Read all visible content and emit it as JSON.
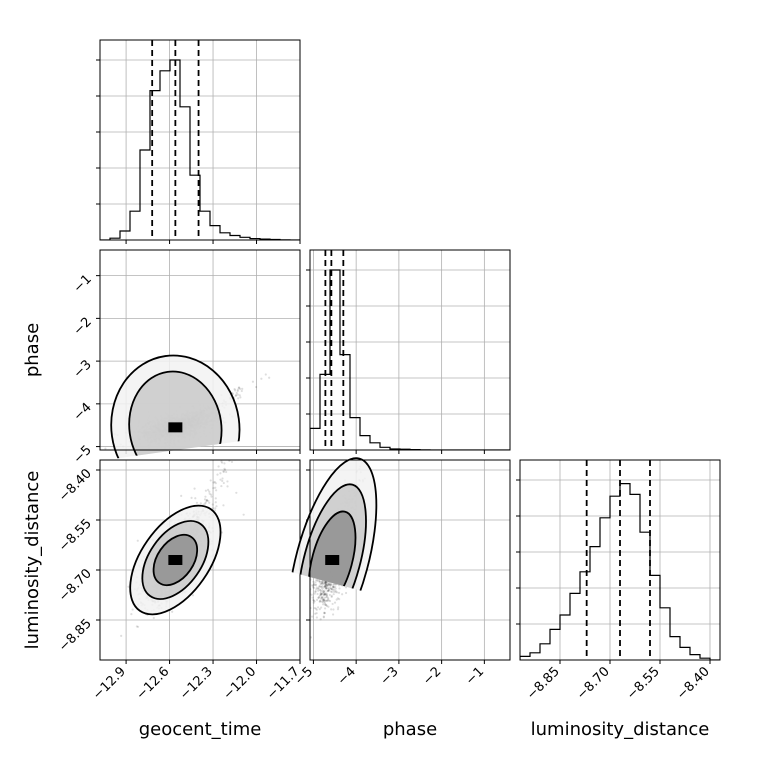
{
  "chart_data": {
    "type": "corner",
    "parameters": [
      "geocent_time",
      "phase",
      "luminosity_distance"
    ],
    "axis_labels": {
      "geocent_time": "geocent_time",
      "phase": "phase",
      "luminosity_distance": "luminosity_distance"
    },
    "grid": true,
    "ranges": {
      "geocent_time": [
        -13.08,
        -11.7
      ],
      "phase": [
        -5.08,
        -0.4
      ],
      "luminosity_distance": [
        -8.97,
        -8.37
      ]
    },
    "ticks": {
      "geocent_time": [
        {
          "v": -12.9,
          "label": "−12.9"
        },
        {
          "v": -12.6,
          "label": "−12.6"
        },
        {
          "v": -12.3,
          "label": "−12.3"
        },
        {
          "v": -12.0,
          "label": "−12.0"
        },
        {
          "v": -11.7,
          "label": "−11.7"
        }
      ],
      "phase": [
        {
          "v": -5,
          "label": "−5"
        },
        {
          "v": -4,
          "label": "−4"
        },
        {
          "v": -3,
          "label": "−3"
        },
        {
          "v": -2,
          "label": "−2"
        },
        {
          "v": -1,
          "label": "−1"
        }
      ],
      "luminosity_distance": [
        {
          "v": -8.85,
          "label": "−8.85"
        },
        {
          "v": -8.7,
          "label": "−8.70"
        },
        {
          "v": -8.55,
          "label": "−8.55"
        },
        {
          "v": -8.4,
          "label": "−8.40"
        }
      ]
    },
    "histograms": {
      "geocent_time": {
        "bin_start": -13.08,
        "bin_width": 0.069,
        "values": [
          0.0,
          0.01,
          0.05,
          0.16,
          0.5,
          0.83,
          0.94,
          1.0,
          0.74,
          0.36,
          0.16,
          0.08,
          0.04,
          0.025,
          0.015,
          0.008,
          0.005,
          0.003,
          0.001,
          0.0
        ],
        "quantiles": [
          -12.72,
          -12.56,
          -12.4
        ]
      },
      "phase": {
        "bin_start": -5.08,
        "bin_width": 0.234,
        "values": [
          0.12,
          0.42,
          1.0,
          0.53,
          0.18,
          0.08,
          0.04,
          0.015,
          0.006,
          0.004,
          0.002,
          0.001,
          0.0,
          0.0,
          0.0,
          0.0,
          0.0,
          0.0,
          0.0,
          0.0
        ],
        "quantiles": [
          -4.72,
          -4.58,
          -4.3
        ]
      },
      "luminosity_distance": {
        "bin_start": -8.97,
        "bin_width": 0.03,
        "values": [
          0.02,
          0.04,
          0.09,
          0.17,
          0.25,
          0.37,
          0.49,
          0.63,
          0.79,
          0.91,
          0.98,
          0.92,
          0.71,
          0.47,
          0.29,
          0.13,
          0.07,
          0.03,
          0.01,
          0.0
        ],
        "quantiles": [
          -8.77,
          -8.67,
          -8.58
        ]
      }
    },
    "scatter_2d": [
      {
        "x": "geocent_time",
        "y": "phase",
        "center": [
          -12.56,
          -4.55
        ],
        "std": [
          0.12,
          0.17
        ],
        "corr": 0.55,
        "n_points": 1600,
        "contours": [
          {
            "width": [
              0.46,
              0.56
            ],
            "angle_deg": 8
          },
          {
            "width": [
              0.64,
              0.72
            ],
            "angle_deg": 8
          }
        ]
      },
      {
        "x": "geocent_time",
        "y": "luminosity_distance",
        "center": [
          -12.56,
          -8.67
        ],
        "std": [
          0.11,
          0.065
        ],
        "corr": 0.65,
        "n_points": 1600,
        "contours": [
          {
            "width": [
              0.28,
              0.18
            ],
            "angle_deg": 55
          },
          {
            "width": [
              0.44,
              0.26
            ],
            "angle_deg": 55
          },
          {
            "width": [
              0.62,
              0.34
            ],
            "angle_deg": 55
          }
        ]
      },
      {
        "x": "phase",
        "y": "luminosity_distance",
        "center": [
          -4.56,
          -8.67
        ],
        "std": [
          0.22,
          0.065
        ],
        "corr": 0.55,
        "n_points": 1600,
        "contours": [
          {
            "width": [
              0.5,
              0.2
            ],
            "angle_deg": 75
          },
          {
            "width": [
              0.78,
              0.28
            ],
            "angle_deg": 75
          },
          {
            "width": [
              1.05,
              0.36
            ],
            "angle_deg": 75
          }
        ]
      }
    ]
  }
}
